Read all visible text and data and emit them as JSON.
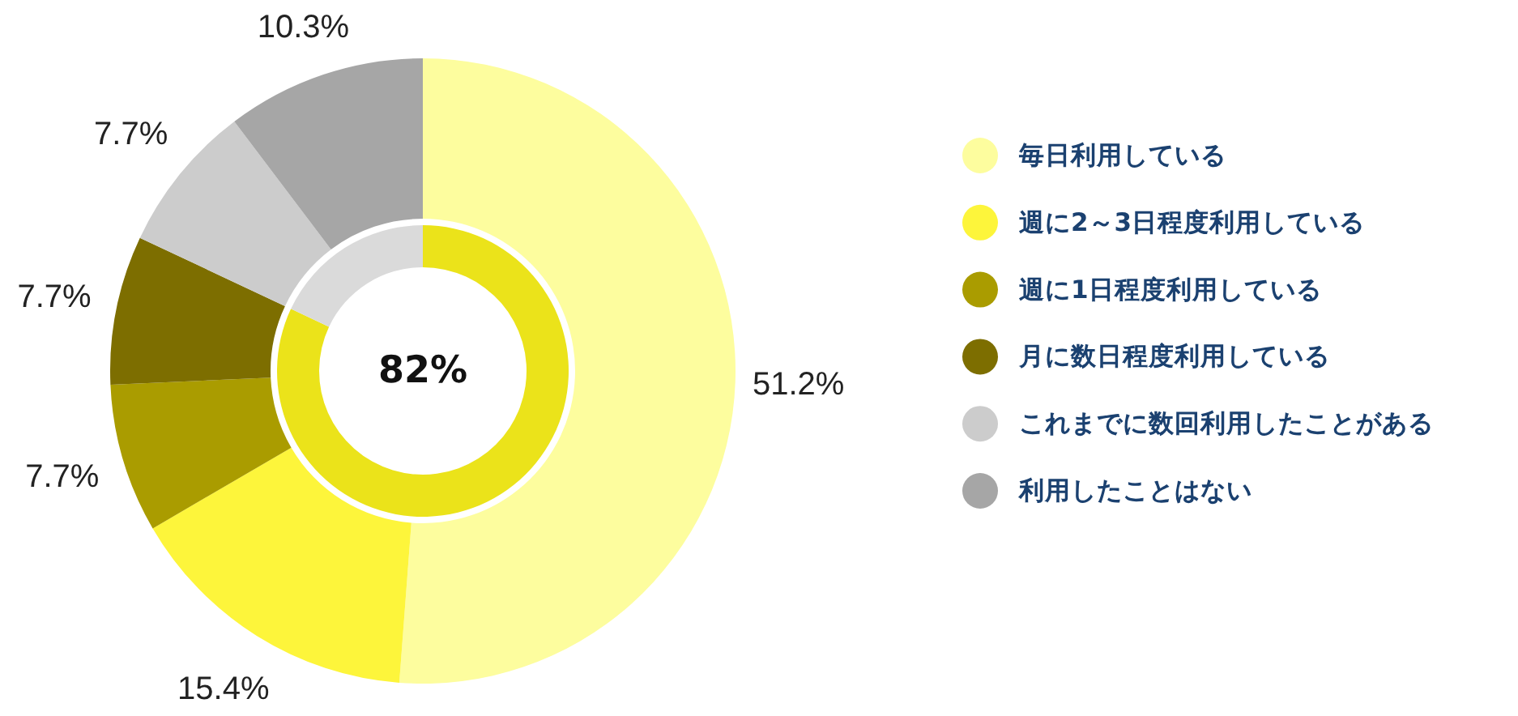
{
  "chart_data": [
    {
      "type": "donut",
      "categories": [
        "毎日利用している",
        "週に2～3日程度利用している",
        "週に1日程度利用している",
        "月に数日程度利用している",
        "これまでに数回利用したことがある",
        "利用したことはない"
      ],
      "values": [
        51.2,
        15.4,
        7.7,
        7.7,
        7.7,
        10.3
      ],
      "colors": [
        "#fdfd9e",
        "#fdf53b",
        "#aa9c00",
        "#7d6e00",
        "#cccccc",
        "#a6a6a6"
      ],
      "value_labels": [
        "51.2%",
        "15.4%",
        "7.7%",
        "7.7%",
        "7.7%",
        "10.3%"
      ],
      "legend": "right"
    },
    {
      "type": "donut",
      "categories": [
        null,
        null
      ],
      "values": [
        82,
        18
      ],
      "colors": [
        "#ebe31a",
        "#dadada"
      ],
      "annotations": [
        "82%"
      ]
    }
  ]
}
